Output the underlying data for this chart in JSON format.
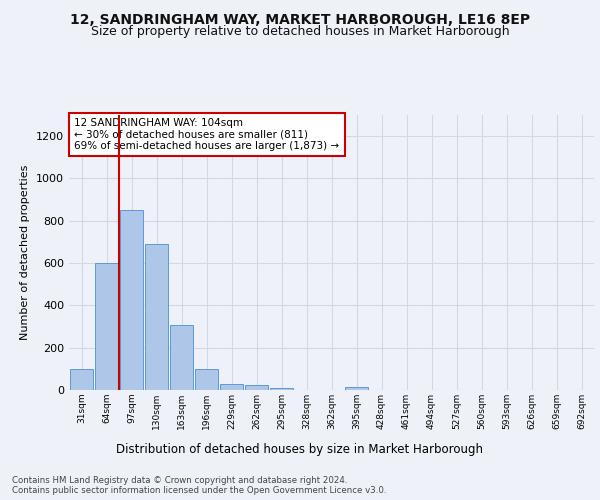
{
  "title": "12, SANDRINGHAM WAY, MARKET HARBOROUGH, LE16 8EP",
  "subtitle": "Size of property relative to detached houses in Market Harborough",
  "xlabel": "Distribution of detached houses by size in Market Harborough",
  "ylabel": "Number of detached properties",
  "bar_values": [
    100,
    600,
    850,
    690,
    305,
    100,
    30,
    25,
    10,
    0,
    0,
    15,
    0,
    0,
    0,
    0,
    0,
    0,
    0,
    0,
    0
  ],
  "bin_labels": [
    "31sqm",
    "64sqm",
    "97sqm",
    "130sqm",
    "163sqm",
    "196sqm",
    "229sqm",
    "262sqm",
    "295sqm",
    "328sqm",
    "362sqm",
    "395sqm",
    "428sqm",
    "461sqm",
    "494sqm",
    "527sqm",
    "560sqm",
    "593sqm",
    "626sqm",
    "659sqm",
    "692sqm"
  ],
  "bar_color": "#aec6e8",
  "bar_edge_color": "#5b9bd5",
  "grid_color": "#d0d8e8",
  "vline_x_idx": 2,
  "vline_color": "#cc0000",
  "annotation_text": "12 SANDRINGHAM WAY: 104sqm\n← 30% of detached houses are smaller (811)\n69% of semi-detached houses are larger (1,873) →",
  "annotation_box_color": "#ffffff",
  "annotation_box_edge": "#cc0000",
  "ylim": [
    0,
    1300
  ],
  "yticks": [
    0,
    200,
    400,
    600,
    800,
    1000,
    1200
  ],
  "footer": "Contains HM Land Registry data © Crown copyright and database right 2024.\nContains public sector information licensed under the Open Government Licence v3.0.",
  "bg_color": "#eef2f8",
  "title_fontsize": 10,
  "subtitle_fontsize": 9
}
